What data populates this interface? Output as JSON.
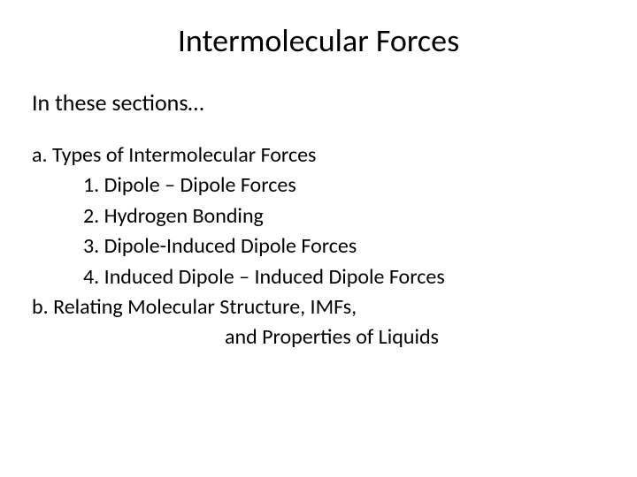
{
  "title": "Intermolecular Forces",
  "subtitle": "In these sections…",
  "section_a": {
    "label": "a. Types of Intermolecular Forces",
    "items": [
      "1.   Dipole  – Dipole Forces",
      "2.   Hydrogen Bonding",
      "3.   Dipole-Induced Dipole Forces",
      "4.   Induced Dipole – Induced Dipole Forces"
    ]
  },
  "section_b": {
    "line1": "b. Relating Molecular Structure, IMFs,",
    "line2": "and Properties of Liquids"
  },
  "colors": {
    "background": "#ffffff",
    "text": "#000000"
  },
  "typography": {
    "font_family": "Calibri",
    "title_fontsize": 36,
    "subtitle_fontsize": 26,
    "body_fontsize": 24
  }
}
